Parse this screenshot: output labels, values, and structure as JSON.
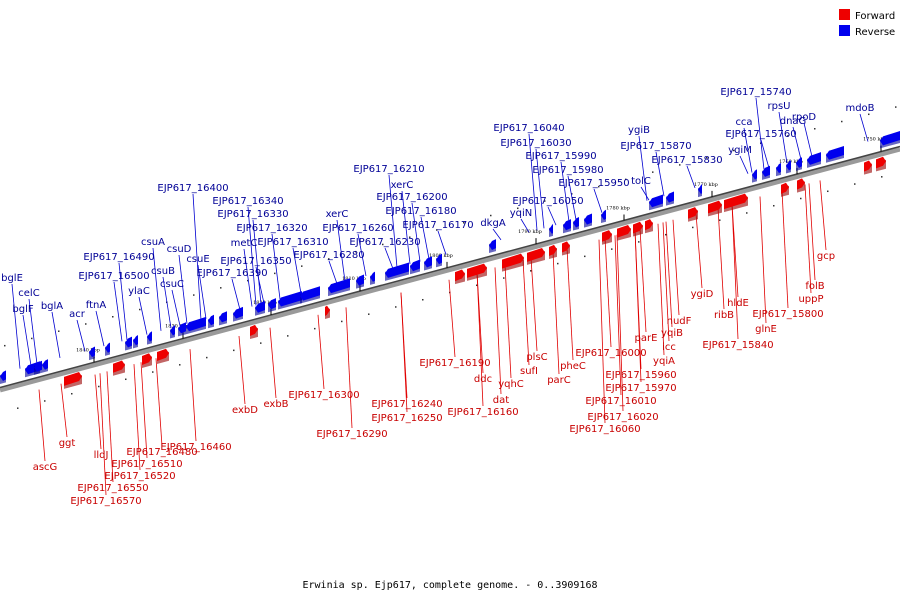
{
  "caption": "Erwinia sp. Ejp617, complete genome. - 0..3909168",
  "legend": [
    {
      "label": "Forward",
      "color": "#ee0000"
    },
    {
      "label": "Reverse",
      "color": "#0000ee"
    }
  ],
  "ticks": [
    {
      "label": "1840 kbp",
      "kbp": 1840
    },
    {
      "label": "1830 kbp",
      "kbp": 1830
    },
    {
      "label": "1820 kbp",
      "kbp": 1820
    },
    {
      "label": "1810 kbp",
      "kbp": 1810
    },
    {
      "label": "1800 kbp",
      "kbp": 1800
    },
    {
      "label": "1790 kbp",
      "kbp": 1790
    },
    {
      "label": "1780 kbp",
      "kbp": 1780
    },
    {
      "label": "1770 kbp",
      "kbp": 1770
    },
    {
      "label": "1760 kbp",
      "kbp": 1760
    },
    {
      "label": "1750 kbp",
      "kbp": 1750
    }
  ],
  "reverse_genes": [
    "bglE",
    "bglF",
    "celC",
    "bglA",
    "acr",
    "ftnA",
    "EJP617_16500",
    "ylaC",
    "EJP617_16490",
    "csuB",
    "csuA",
    "csuC",
    "csuD",
    "csuE",
    "EJP617_16390",
    "EJP617_16400",
    "metC",
    "EJP617_16350",
    "EJP617_16340",
    "EJP617_16330",
    "EJP617_16320",
    "EJP617_16310",
    "EJP617_16280",
    "xerC",
    "EJP617_16260",
    "EJP617_16230",
    "EJP617_16210",
    "xerC",
    "EJP617_16200",
    "EJP617_16180",
    "EJP617_16170",
    "dkgA",
    "yqiN",
    "EJP617_16050",
    "EJP617_16040",
    "EJP617_16030",
    "EJP617_15990",
    "EJP617_15980",
    "EJP617_15950",
    "tolC",
    "ygiB",
    "EJP617_15870",
    "EJP617_15830",
    "ygiM",
    "cca",
    "EJP617_15760",
    "EJP617_15740",
    "rpsU",
    "dnaG",
    "rpoD",
    "mdoB"
  ],
  "forward_genes": [
    "ascG",
    "ggt",
    "lldJ",
    "EJP617_16570",
    "EJP617_16550",
    "EJP617_16520",
    "EJP617_16510",
    "EJP617_16480",
    "EJP617_16460",
    "exbD",
    "exbB",
    "EJP617_16300",
    "EJP617_16290",
    "EJP617_16240",
    "EJP617_16250",
    "EJP617_16190",
    "ddc",
    "EJP617_16160",
    "dat",
    "yqhC",
    "sufI",
    "plsC",
    "parC",
    "pheC",
    "EJP617_16000",
    "EJP617_15960",
    "EJP617_15970",
    "EJP617_16010",
    "EJP617_16020",
    "EJP617_16060",
    "parE",
    "yqiA",
    "icc",
    "yqiB",
    "nudF",
    "ygiD",
    "ribB",
    "hldE",
    "glnE",
    "EJP617_15800",
    "EJP617_15840",
    "folB",
    "uppP",
    "gcp"
  ]
}
